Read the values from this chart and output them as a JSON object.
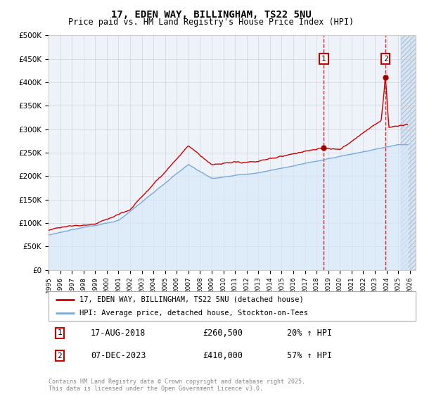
{
  "title": "17, EDEN WAY, BILLINGHAM, TS22 5NU",
  "subtitle": "Price paid vs. HM Land Registry's House Price Index (HPI)",
  "ylabel_ticks": [
    "£0",
    "£50K",
    "£100K",
    "£150K",
    "£200K",
    "£250K",
    "£300K",
    "£350K",
    "£400K",
    "£450K",
    "£500K"
  ],
  "ytick_values": [
    0,
    50000,
    100000,
    150000,
    200000,
    250000,
    300000,
    350000,
    400000,
    450000,
    500000
  ],
  "xlim_start": 1995.0,
  "xlim_end": 2026.5,
  "ylim_min": 0,
  "ylim_max": 500000,
  "sale1_date": 2018.625,
  "sale1_price": 260500,
  "sale1_label": "1",
  "sale1_annotation": "17-AUG-2018",
  "sale1_price_str": "£260,500",
  "sale1_hpi_str": "20% ↑ HPI",
  "sale2_date": 2023.92,
  "sale2_price": 410000,
  "sale2_label": "2",
  "sale2_annotation": "07-DEC-2023",
  "sale2_price_str": "£410,000",
  "sale2_hpi_str": "57% ↑ HPI",
  "red_color": "#cc0000",
  "blue_color": "#7aaadd",
  "blue_fill": "#d8e8f8",
  "legend_label1": "17, EDEN WAY, BILLINGHAM, TS22 5NU (detached house)",
  "legend_label2": "HPI: Average price, detached house, Stockton-on-Tees",
  "footnote": "Contains HM Land Registry data © Crown copyright and database right 2025.\nThis data is licensed under the Open Government Licence v3.0.",
  "grid_color": "#cccccc",
  "bg_color": "#ffffff",
  "plot_bg": "#eef3fa"
}
